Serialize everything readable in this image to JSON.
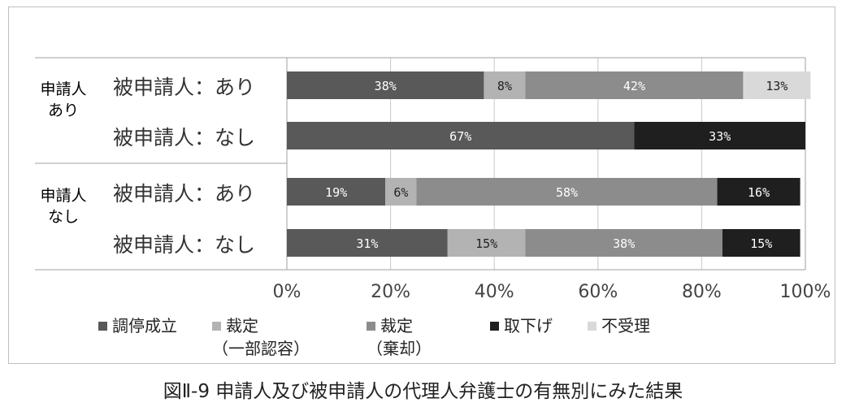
{
  "chart_data": {
    "type": "bar",
    "orientation": "horizontal",
    "stacked": true,
    "groups": [
      {
        "label_line1": "申請人",
        "label_line2": "あり",
        "rows": [
          {
            "label": "被申請人：あり",
            "values": [
              38,
              8,
              42,
              0,
              13
            ]
          },
          {
            "label": "被申請人：なし",
            "values": [
              67,
              0,
              0,
              33,
              0
            ]
          }
        ]
      },
      {
        "label_line1": "申請人",
        "label_line2": "なし",
        "rows": [
          {
            "label": "被申請人：あり",
            "values": [
              19,
              6,
              58,
              16,
              0
            ]
          },
          {
            "label": "被申請人：なし",
            "values": [
              31,
              15,
              38,
              15,
              0
            ]
          }
        ]
      }
    ],
    "series": [
      {
        "name": "調停成立",
        "sub": "",
        "color": "#595959"
      },
      {
        "name": "裁定",
        "sub": "（一部認容）",
        "color": "#b3b3b3"
      },
      {
        "name": "裁定",
        "sub": "（棄却）",
        "color": "#8c8c8c"
      },
      {
        "name": "取下げ",
        "sub": "",
        "color": "#1f1f1f"
      },
      {
        "name": "不受理",
        "sub": "",
        "color": "#d9d9d9"
      }
    ],
    "xticks": [
      "0%",
      "20%",
      "40%",
      "60%",
      "80%",
      "100%"
    ],
    "xlim": [
      0,
      100
    ],
    "grid": true,
    "legend_position": "bottom"
  },
  "caption": "図Ⅱ-9 申請人及び被申請人の代理人弁護士の有無別にみた結果"
}
